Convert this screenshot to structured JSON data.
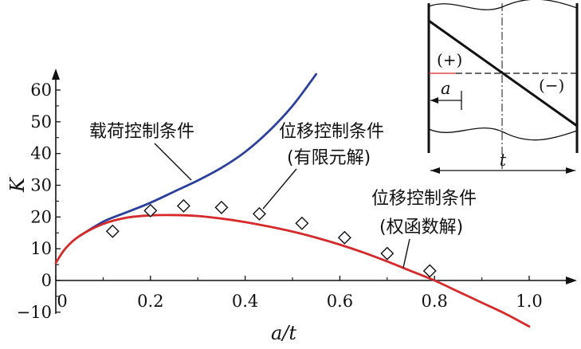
{
  "chart_data": {
    "type": "line",
    "xlabel": "a/t",
    "ylabel": "K",
    "xlim": [
      0,
      1.1
    ],
    "ylim": [
      -10,
      65
    ],
    "x_ticks": [
      "0",
      "0.2",
      "0.4",
      "0.6",
      "0.8",
      "1.0"
    ],
    "y_ticks": [
      "60",
      "50",
      "40",
      "30",
      "20",
      "10",
      "0",
      "−10"
    ],
    "grid": false,
    "series": [
      {
        "name": "载荷控制条件",
        "color": "#2b3f9c",
        "kind": "line",
        "x": [
          0.05,
          0.1,
          0.15,
          0.2,
          0.25,
          0.3,
          0.35,
          0.4,
          0.45,
          0.5,
          0.55
        ],
        "y": [
          14,
          18.5,
          21.5,
          24.5,
          28,
          31.5,
          35.5,
          40.5,
          47,
          55,
          65
        ]
      },
      {
        "name": "位移控制条件(权函数解)",
        "color": "#d62a2a",
        "kind": "line",
        "x": [
          0,
          0.02,
          0.05,
          0.1,
          0.15,
          0.2,
          0.25,
          0.3,
          0.35,
          0.4,
          0.45,
          0.5,
          0.55,
          0.6,
          0.65,
          0.7,
          0.75,
          0.8,
          0.85,
          0.9,
          0.95,
          1.0
        ],
        "y": [
          5.5,
          10,
          14,
          17.8,
          19.8,
          20.5,
          20.6,
          20.3,
          19.5,
          18.4,
          17,
          15.4,
          13.5,
          11.3,
          8.8,
          6,
          3,
          0,
          -3.5,
          -7,
          -10.5,
          -14.5
        ]
      },
      {
        "name": "位移控制条件(有限元解)",
        "kind": "markers",
        "marker": "diamond",
        "x": [
          0.12,
          0.2,
          0.27,
          0.35,
          0.43,
          0.52,
          0.61,
          0.7,
          0.79
        ],
        "y": [
          15.5,
          22,
          23.5,
          23,
          21,
          18,
          13.5,
          8.5,
          3
        ]
      }
    ]
  },
  "annotations": {
    "load_line1": "载荷控制条件",
    "disp_fem_line1": "位移控制条件",
    "disp_fem_line2": "(有限元解)",
    "disp_wf_line1": "位移控制条件",
    "disp_wf_line2": "(权函数解)"
  },
  "inset": {
    "plus_label": "(+)",
    "minus_label": "(−)",
    "a_label": "a",
    "t_label": "t"
  }
}
